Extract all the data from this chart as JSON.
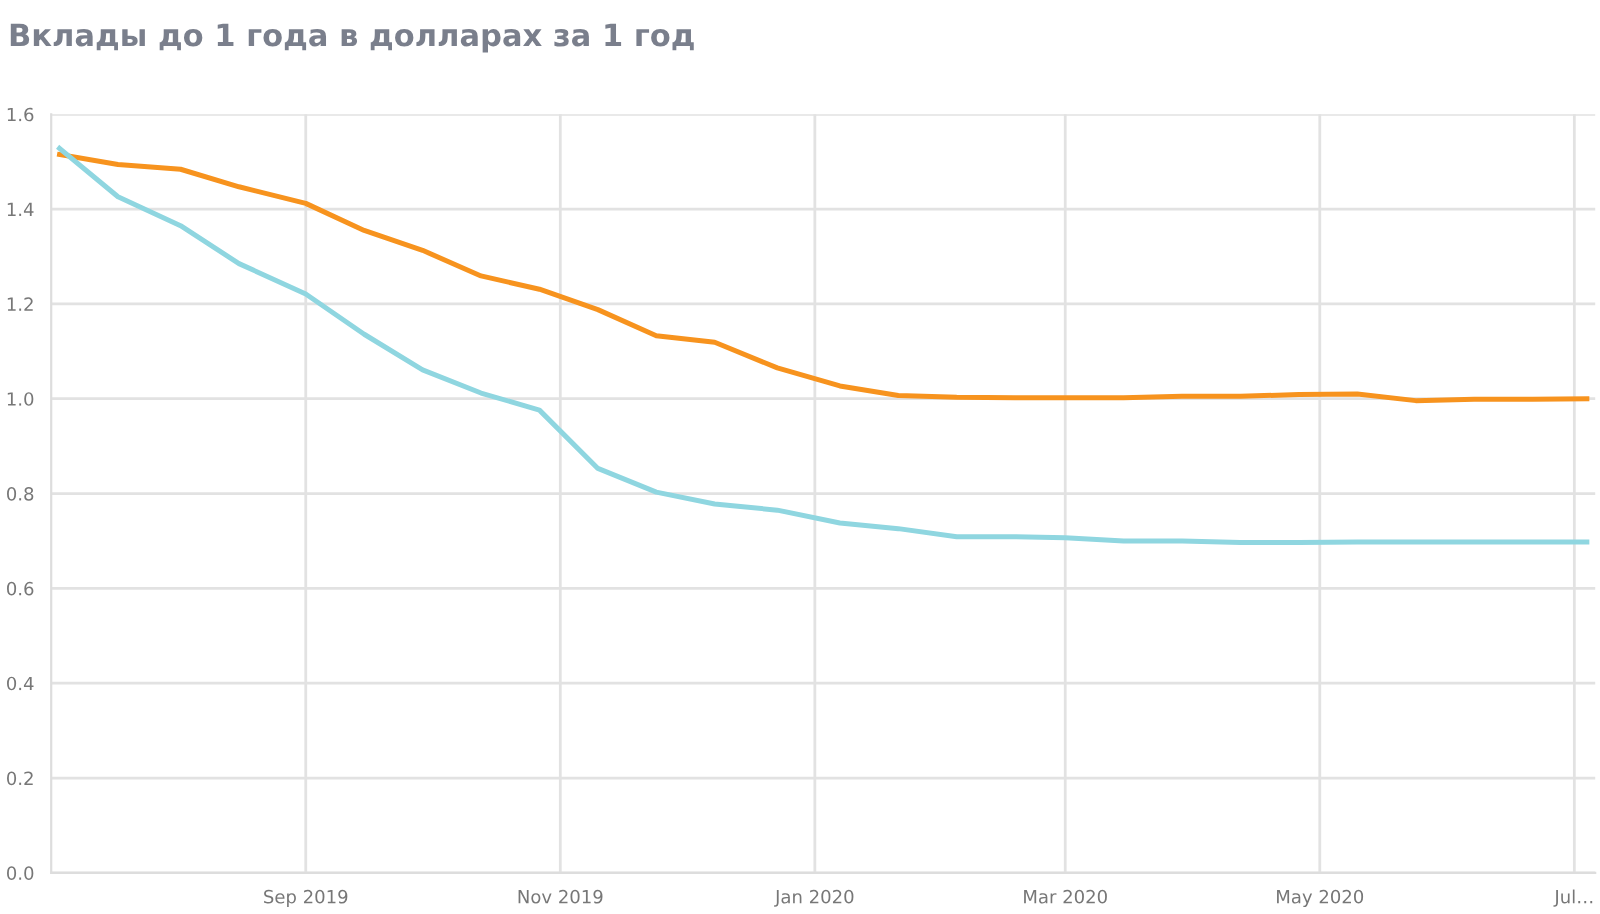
{
  "chart_data": {
    "type": "line",
    "title": "Вклады до 1 года в долларах за 1 год",
    "x": [
      "2019-07-04",
      "2019-07-18",
      "2019-08-02",
      "2019-08-16",
      "2019-09-01",
      "2019-09-15",
      "2019-09-29",
      "2019-10-13",
      "2019-10-27",
      "2019-11-10",
      "2019-11-24",
      "2019-12-08",
      "2019-12-23",
      "2020-01-07",
      "2020-01-21",
      "2020-02-04",
      "2020-02-18",
      "2020-03-01",
      "2020-03-15",
      "2020-03-29",
      "2020-04-12",
      "2020-04-26",
      "2020-05-10",
      "2020-05-24",
      "2020-06-07",
      "2020-06-21",
      "2020-07-04"
    ],
    "series": [
      {
        "color": "#f7931e",
        "values": [
          1.515,
          1.494,
          1.484,
          1.447,
          1.412,
          1.355,
          1.313,
          1.259,
          1.231,
          1.188,
          1.133,
          1.119,
          1.065,
          1.027,
          1.007,
          1.003,
          1.002,
          1.002,
          1.002,
          1.005,
          1.005,
          1.009,
          1.01,
          0.996,
          0.999,
          0.999,
          1.0
        ]
      },
      {
        "color": "#8fd6e0",
        "values": [
          1.528,
          1.426,
          1.365,
          1.285,
          1.221,
          1.136,
          1.061,
          1.012,
          0.976,
          0.853,
          0.803,
          0.778,
          0.765,
          0.738,
          0.726,
          0.709,
          0.709,
          0.707,
          0.7,
          0.7,
          0.697,
          0.697,
          0.698,
          0.698,
          0.698,
          0.698,
          0.698
        ]
      }
    ],
    "xlim": [
      "2019-07-02",
      "2020-07-06"
    ],
    "xticks": [
      {
        "value": "2019-09-01",
        "label": "Sep 2019"
      },
      {
        "value": "2019-11-01",
        "label": "Nov 2019"
      },
      {
        "value": "2020-01-01",
        "label": "Jan 2020"
      },
      {
        "value": "2020-03-01",
        "label": "Mar 2020"
      },
      {
        "value": "2020-05-01",
        "label": "May 2020"
      },
      {
        "value": "2020-07-01",
        "label": "Jul…"
      }
    ],
    "ylim": [
      0,
      1.6
    ],
    "yticks": [
      {
        "value": 0,
        "label": "0.0"
      },
      0.2,
      0.4,
      0.6,
      0.8,
      {
        "value": 1,
        "label": "1.0"
      },
      1.2,
      1.4,
      1.6
    ],
    "grid": true,
    "marker": "none",
    "line_style": "solid",
    "legend": false
  }
}
